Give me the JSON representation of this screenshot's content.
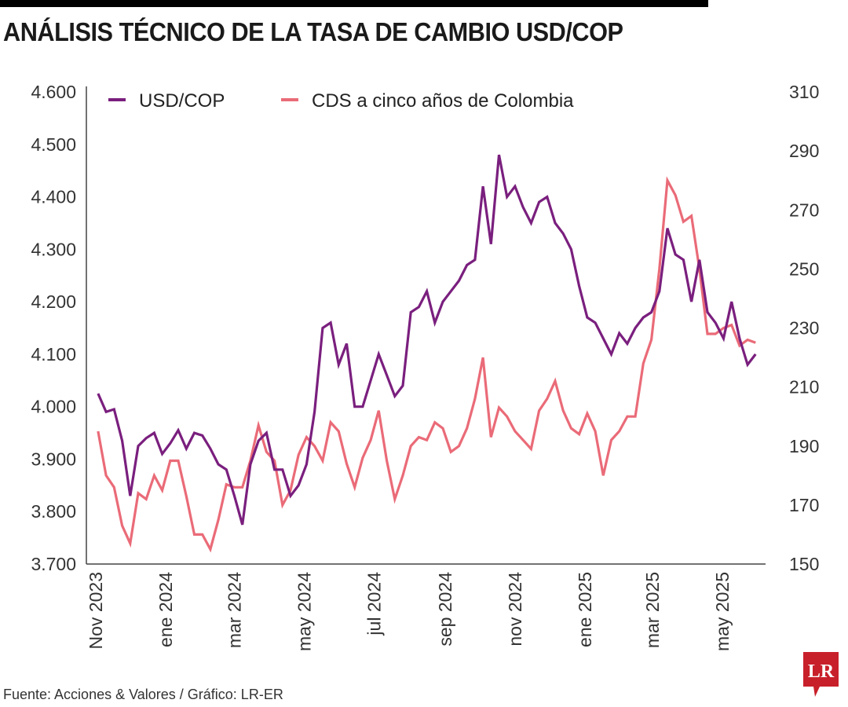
{
  "title": "ANÁLISIS TÉCNICO DE LA TASA DE CAMBIO USD/COP",
  "source": "Fuente: Acciones & Valores / Gráfico: LR-ER",
  "logo_text": "LR",
  "colors": {
    "usdcop": "#7a1f7e",
    "cds": "#ea6b78",
    "logo": "#c8202a"
  },
  "chart_data": {
    "type": "line",
    "title": "ANÁLISIS TÉCNICO DE LA TASA DE CAMBIO USD/COP",
    "legend_placement": "top-left",
    "grid": false,
    "y_left": {
      "range": [
        3700,
        4600
      ],
      "ticks": [
        "3.700",
        "3.800",
        "3.900",
        "4.000",
        "4.100",
        "4.200",
        "4.300",
        "4.400",
        "4.500",
        "4.600"
      ]
    },
    "y_right": {
      "range": [
        150,
        310
      ],
      "ticks": [
        "150",
        "170",
        "190",
        "210",
        "230",
        "250",
        "270",
        "290",
        "310"
      ]
    },
    "x_ticks": [
      {
        "date": "2023-11-01",
        "label": "Nov 2023"
      },
      {
        "date": "2024-01-01",
        "label": "ene 2024"
      },
      {
        "date": "2024-03-01",
        "label": "mar 2024"
      },
      {
        "date": "2024-05-01",
        "label": "may 2024"
      },
      {
        "date": "2024-07-01",
        "label": "jul 2024"
      },
      {
        "date": "2024-09-01",
        "label": "sep 2024"
      },
      {
        "date": "2024-11-01",
        "label": "nov 2024"
      },
      {
        "date": "2025-01-01",
        "label": "ene 2025"
      },
      {
        "date": "2025-03-01",
        "label": "mar 2025"
      },
      {
        "date": "2025-05-01",
        "label": "may 2025"
      }
    ],
    "x": [
      "2023-11-03",
      "2023-11-10",
      "2023-11-17",
      "2023-11-24",
      "2023-12-01",
      "2023-12-08",
      "2023-12-15",
      "2023-12-22",
      "2023-12-29",
      "2024-01-05",
      "2024-01-12",
      "2024-01-19",
      "2024-01-26",
      "2024-02-02",
      "2024-02-09",
      "2024-02-16",
      "2024-02-23",
      "2024-03-01",
      "2024-03-08",
      "2024-03-15",
      "2024-03-22",
      "2024-03-29",
      "2024-04-05",
      "2024-04-12",
      "2024-04-19",
      "2024-04-26",
      "2024-05-03",
      "2024-05-10",
      "2024-05-17",
      "2024-05-24",
      "2024-05-31",
      "2024-06-07",
      "2024-06-14",
      "2024-06-21",
      "2024-06-28",
      "2024-07-05",
      "2024-07-12",
      "2024-07-19",
      "2024-07-26",
      "2024-08-02",
      "2024-08-09",
      "2024-08-16",
      "2024-08-23",
      "2024-08-30",
      "2024-09-06",
      "2024-09-13",
      "2024-09-20",
      "2024-09-27",
      "2024-10-04",
      "2024-10-11",
      "2024-10-18",
      "2024-10-25",
      "2024-11-01",
      "2024-11-08",
      "2024-11-15",
      "2024-11-22",
      "2024-11-29",
      "2024-12-06",
      "2024-12-13",
      "2024-12-20",
      "2024-12-27",
      "2025-01-03",
      "2025-01-10",
      "2025-01-17",
      "2025-01-24",
      "2025-01-31",
      "2025-02-07",
      "2025-02-14",
      "2025-02-21",
      "2025-02-28",
      "2025-03-07",
      "2025-03-14",
      "2025-03-21",
      "2025-03-28",
      "2025-04-04",
      "2025-04-11",
      "2025-04-18",
      "2025-04-25",
      "2025-05-02",
      "2025-05-09",
      "2025-05-16",
      "2025-05-23",
      "2025-05-30"
    ],
    "series": [
      {
        "name": "USD/COP",
        "axis": "left",
        "values": [
          4025,
          3990,
          3995,
          3935,
          3830,
          3925,
          3940,
          3950,
          3910,
          3930,
          3955,
          3920,
          3950,
          3945,
          3920,
          3890,
          3880,
          3830,
          3775,
          3890,
          3935,
          3950,
          3880,
          3880,
          3830,
          3850,
          3890,
          3990,
          4150,
          4160,
          4080,
          4120,
          4000,
          4000,
          4050,
          4100,
          4060,
          4020,
          4040,
          4180,
          4190,
          4220,
          4160,
          4200,
          4220,
          4240,
          4270,
          4280,
          4420,
          4310,
          4480,
          4400,
          4420,
          4380,
          4350,
          4390,
          4400,
          4350,
          4330,
          4300,
          4230,
          4170,
          4160,
          4130,
          4100,
          4140,
          4120,
          4150,
          4170,
          4180,
          4220,
          4340,
          4290,
          4280,
          4200,
          4280,
          4180,
          4160,
          4130,
          4200,
          4130,
          4080,
          4100
        ]
      },
      {
        "name": "CDS a cinco años de Colombia",
        "axis": "right",
        "values": [
          195,
          180,
          176,
          163,
          157,
          174,
          172,
          180,
          175,
          185,
          185,
          173,
          160,
          160,
          155,
          165,
          177,
          176,
          176,
          185,
          197,
          188,
          185,
          170,
          175,
          187,
          193,
          190,
          185,
          198,
          195,
          184,
          176,
          186,
          192,
          202,
          185,
          172,
          180,
          190,
          193,
          192,
          198,
          196,
          188,
          190,
          196,
          206,
          220,
          193,
          203,
          200,
          195,
          192,
          189,
          202,
          206,
          212,
          202,
          196,
          194,
          201,
          195,
          180,
          192,
          195,
          200,
          200,
          218,
          226,
          250,
          280,
          275,
          266,
          268,
          250,
          228,
          228,
          230,
          231,
          224,
          226,
          225
        ]
      }
    ]
  }
}
